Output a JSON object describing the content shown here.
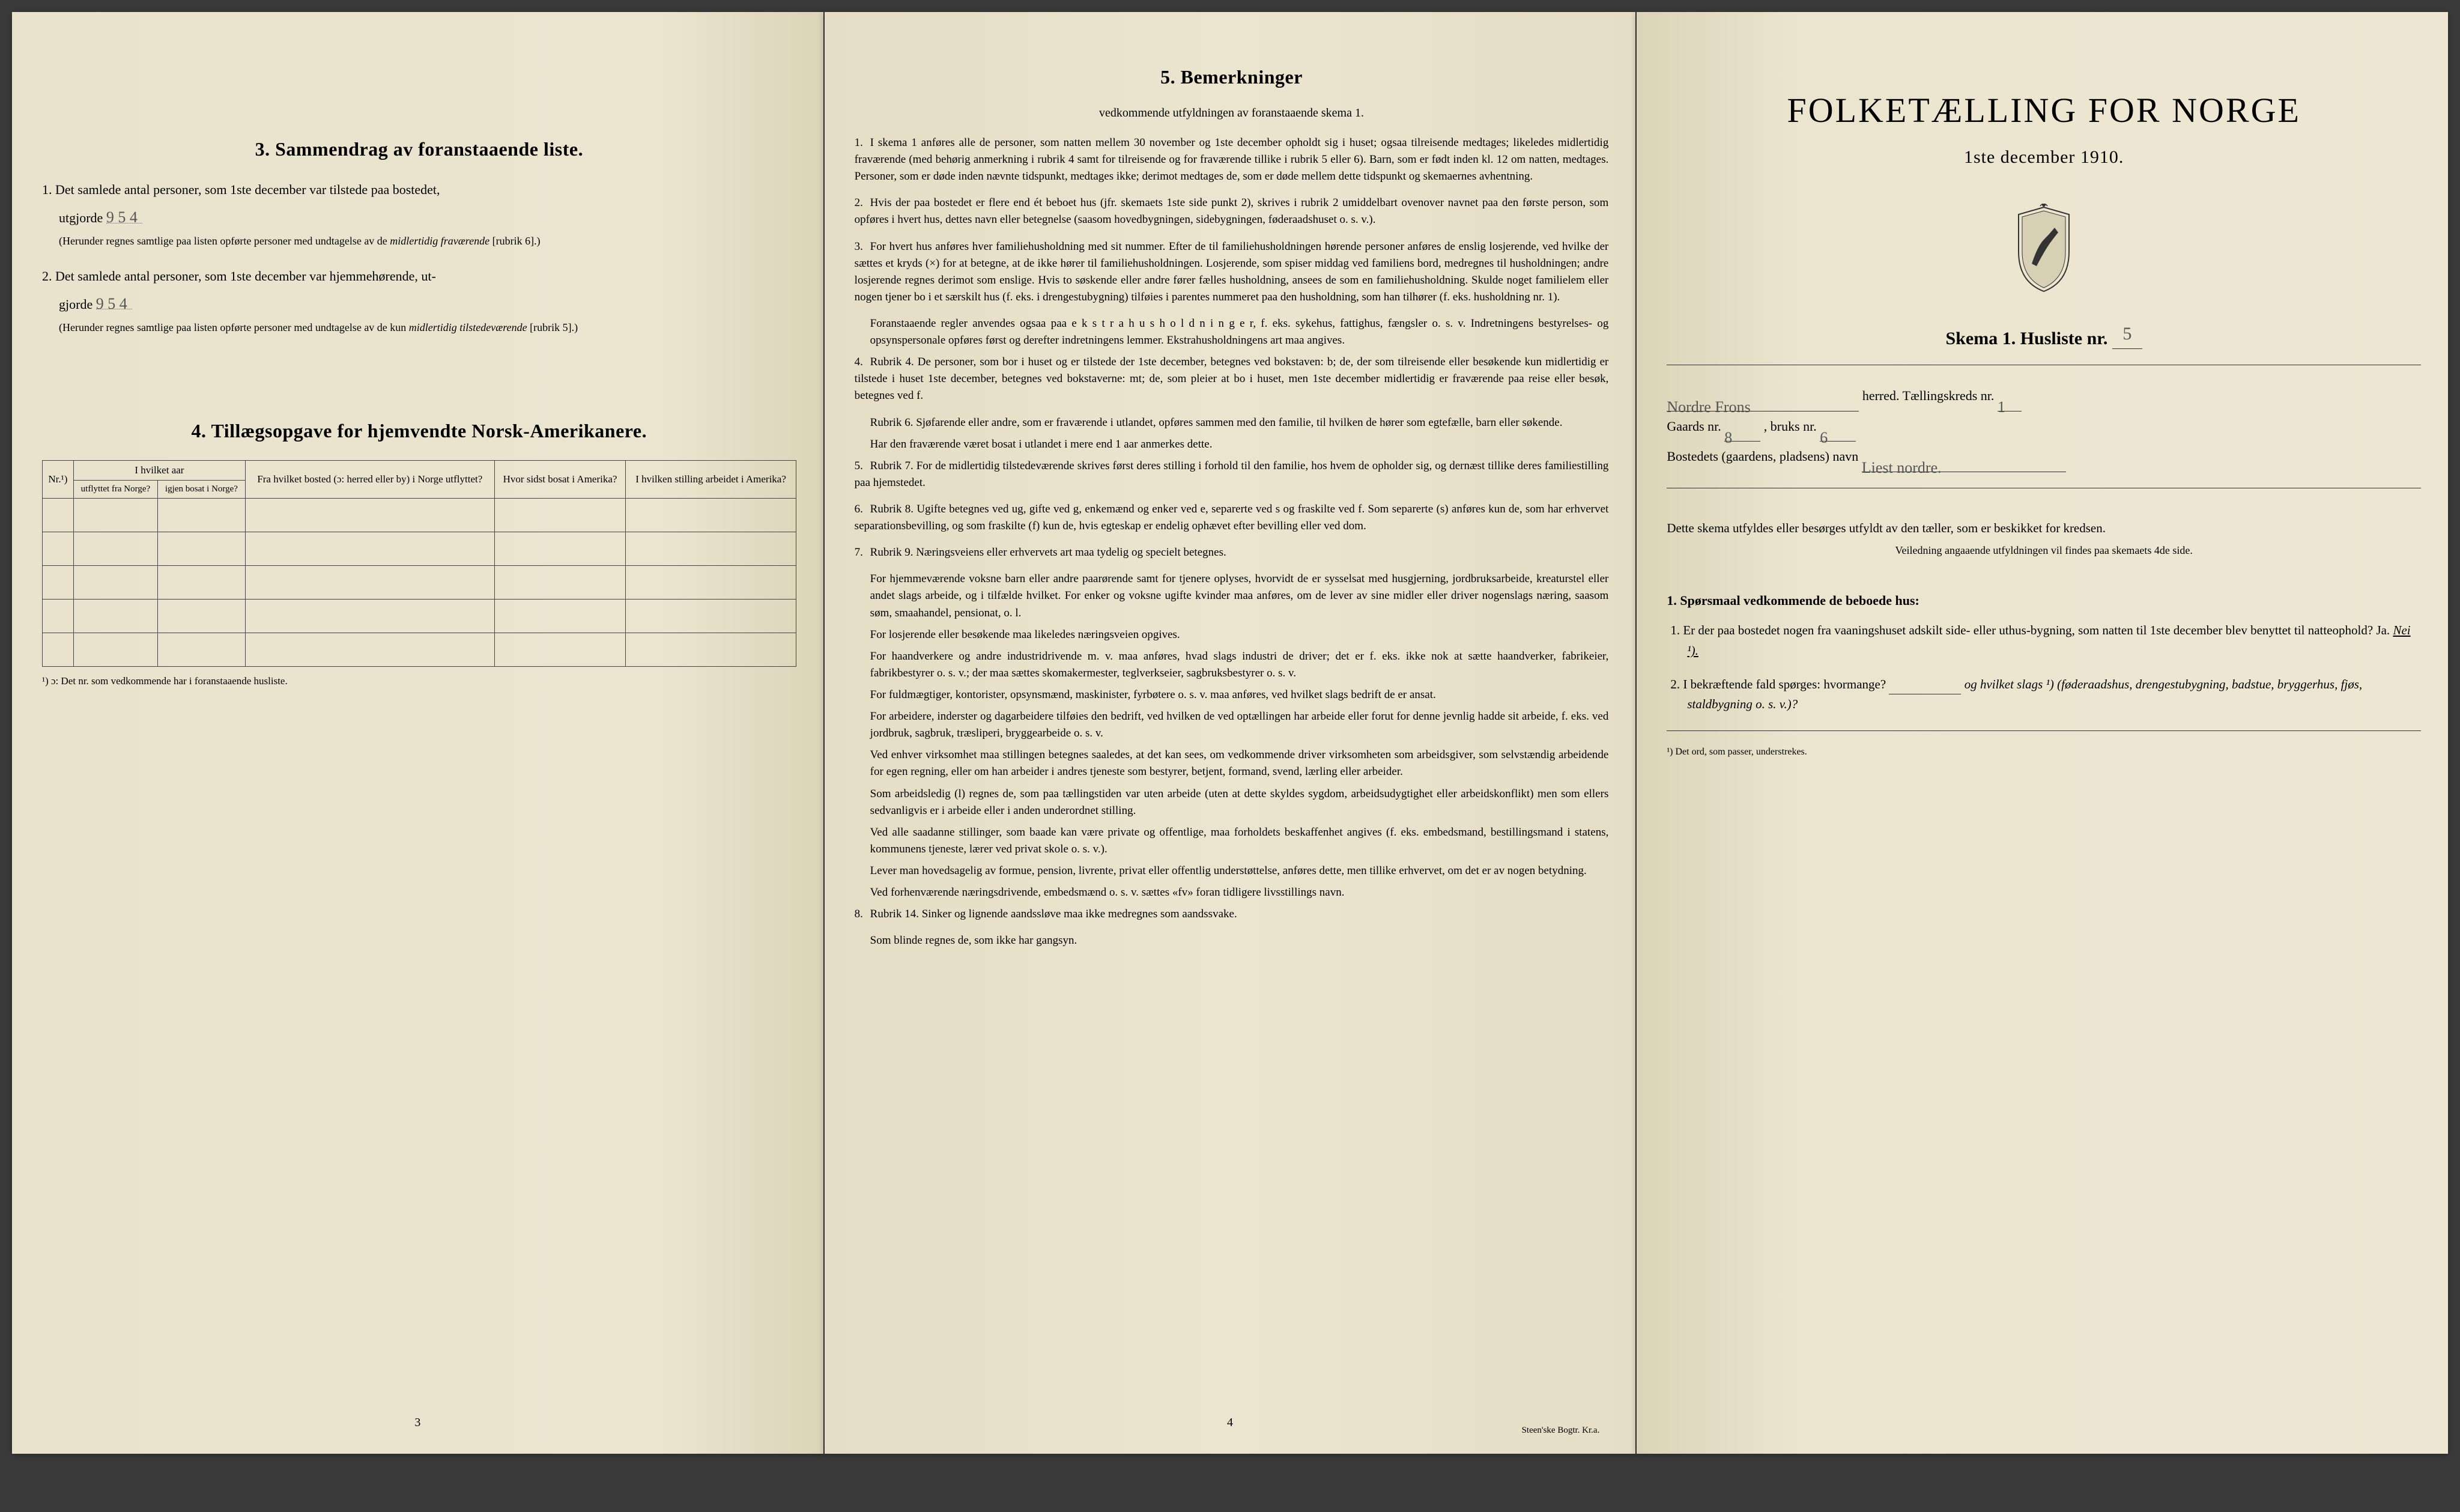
{
  "colors": {
    "paper": "#ebe5d0",
    "ink": "#2a2a25",
    "hand": "#666055"
  },
  "page1": {
    "section3_title": "3.   Sammendrag av foranstaaende liste.",
    "line1a": "1.  Det samlede antal personer, som 1ste december var tilstede paa bostedet,",
    "line1b": "utgjorde",
    "hand1": "9        5    4",
    "line1c": "(Herunder regnes samtlige paa listen opførte personer med undtagelse av de",
    "line1c_it": "midlertidig fraværende",
    "line1d": "[rubrik 6].)",
    "line2a": "2.  Det samlede antal personer, som 1ste december var hjemmehørende, ut-",
    "line2b": "gjorde",
    "hand2": "9        5    4",
    "line2c": "(Herunder regnes samtlige paa listen opførte personer med undtagelse av de kun",
    "line2c_it": "midlertidig tilstedeværende",
    "line2d": "[rubrik 5].)",
    "section4_title": "4.   Tillægsopgave for hjemvendte Norsk-Amerikanere.",
    "table": {
      "col_nr": "Nr.¹)",
      "col_aar": "I hvilket aar",
      "col_aar_sub1": "utflyttet fra Norge?",
      "col_aar_sub2": "igjen bosat i Norge?",
      "col_hosted": "Fra hvilket bosted (ɔ: herred eller by) i Norge utflyttet?",
      "col_sidst": "Hvor sidst bosat i Amerika?",
      "col_stilling": "I hvilken stilling arbeidet i Amerika?",
      "rows": 5
    },
    "footnote1": "¹) ɔ: Det nr. som vedkommende har i foranstaaende husliste.",
    "pagenum": "3"
  },
  "page2": {
    "title": "5.    Bemerkninger",
    "subtitle": "vedkommende utfyldningen av foranstaaende skema 1.",
    "rules": [
      {
        "n": "1.",
        "text": "I skema 1 anføres alle de personer, som natten mellem 30 november og 1ste december opholdt sig i huset; ogsaa tilreisende medtages; likeledes midlertidig fraværende (med behørig anmerkning i rubrik 4 samt for tilreisende og for fraværende tillike i rubrik 5 eller 6). Barn, som er født inden kl. 12 om natten, medtages. Personer, som er døde inden nævnte tidspunkt, medtages ikke; derimot medtages de, som er døde mellem dette tidspunkt og skemaernes avhentning."
      },
      {
        "n": "2.",
        "text": "Hvis der paa bostedet er flere end ét beboet hus (jfr. skemaets 1ste side punkt 2), skrives i rubrik 2 umiddelbart ovenover navnet paa den første person, som opføres i hvert hus, dettes navn eller betegnelse (saasom hovedbygningen, sidebygningen, føderaadshuset o. s. v.)."
      },
      {
        "n": "3.",
        "text": "For hvert hus anføres hver familiehusholdning med sit nummer. Efter de til familiehusholdningen hørende personer anføres de enslig losjerende, ved hvilke der sættes et kryds (×) for at betegne, at de ikke hører til familiehusholdningen. Losjerende, som spiser middag ved familiens bord, medregnes til husholdningen; andre losjerende regnes derimot som enslige. Hvis to søskende eller andre fører fælles husholdning, ansees de som en familiehusholdning. Skulde noget familielem eller nogen tjener bo i et særskilt hus (f. eks. i drengestubygning) tilføies i parentes nummeret paa den husholdning, som han tilhører (f. eks. husholdning nr. 1).",
        "extra": [
          "Foranstaaende regler anvendes ogsaa paa e k s t r a h u s h o l d n i n g e r, f. eks. sykehus, fattighus, fængsler o. s. v. Indretningens bestyrelses- og opsynspersonale opføres først og derefter indretningens lemmer. Ekstrahusholdningens art maa angives."
        ]
      },
      {
        "n": "4.",
        "text": "Rubrik 4. De personer, som bor i huset og er tilstede der 1ste december, betegnes ved bokstaven: b; de, der som tilreisende eller besøkende kun midlertidig er tilstede i huset 1ste december, betegnes ved bokstaverne: mt; de, som pleier at bo i huset, men 1ste december midlertidig er fraværende paa reise eller besøk, betegnes ved f.",
        "extra": [
          "Rubrik 6. Sjøfarende eller andre, som er fraværende i utlandet, opføres sammen med den familie, til hvilken de hører som egtefælle, barn eller søkende.",
          "Har den fraværende været bosat i utlandet i mere end 1 aar anmerkes dette."
        ]
      },
      {
        "n": "5.",
        "text": "Rubrik 7. For de midlertidig tilstedeværende skrives først deres stilling i forhold til den familie, hos hvem de opholder sig, og dernæst tillike deres familiestilling paa hjemstedet."
      },
      {
        "n": "6.",
        "text": "Rubrik 8. Ugifte betegnes ved ug, gifte ved g, enkemænd og enker ved e, separerte ved s og fraskilte ved f. Som separerte (s) anføres kun de, som har erhvervet separationsbevilling, og som fraskilte (f) kun de, hvis egteskap er endelig ophævet efter bevilling eller ved dom."
      },
      {
        "n": "7.",
        "text": "Rubrik 9. Næringsveiens eller erhvervets art maa tydelig og specielt betegnes.",
        "extra": [
          "For hjemmeværende voksne barn eller andre paarørende samt for tjenere oplyses, hvorvidt de er sysselsat med husgjerning, jordbruksarbeide, kreaturstel eller andet slags arbeide, og i tilfælde hvilket. For enker og voksne ugifte kvinder maa anføres, om de lever av sine midler eller driver nogenslags næring, saasom søm, smaahandel, pensionat, o. l.",
          "For losjerende eller besøkende maa likeledes næringsveien opgives.",
          "For haandverkere og andre industridrivende m. v. maa anføres, hvad slags industri de driver; det er f. eks. ikke nok at sætte haandverker, fabrikeier, fabrikbestyrer o. s. v.; der maa sættes skomakermester, teglverkseier, sagbruksbestyrer o. s. v.",
          "For fuldmægtiger, kontorister, opsynsmænd, maskinister, fyrbøtere o. s. v. maa anføres, ved hvilket slags bedrift de er ansat.",
          "For arbeidere, inderster og dagarbeidere tilføies den bedrift, ved hvilken de ved optællingen har arbeide eller forut for denne jevnlig hadde sit arbeide, f. eks. ved jordbruk, sagbruk, træsliperi, bryggearbeide o. s. v.",
          "Ved enhver virksomhet maa stillingen betegnes saaledes, at det kan sees, om vedkommende driver virksomheten som arbeidsgiver, som selvstændig arbeidende for egen regning, eller om han arbeider i andres tjeneste som bestyrer, betjent, formand, svend, lærling eller arbeider.",
          "Som arbeidsledig (l) regnes de, som paa tællingstiden var uten arbeide (uten at dette skyldes sygdom, arbeidsudygtighet eller arbeidskonflikt) men som ellers sedvanligvis er i arbeide eller i anden underordnet stilling.",
          "Ved alle saadanne stillinger, som baade kan være private og offentlige, maa forholdets beskaffenhet angives (f. eks. embedsmand, bestillingsmand i statens, kommunens tjeneste, lærer ved privat skole o. s. v.).",
          "Lever man hovedsagelig av formue, pension, livrente, privat eller offentlig understøttelse, anføres dette, men tillike erhvervet, om det er av nogen betydning.",
          "Ved forhenværende næringsdrivende, embedsmænd o. s. v. sættes «fv» foran tidligere livsstillings navn."
        ]
      },
      {
        "n": "8.",
        "text": "Rubrik 14. Sinker og lignende aandssløve maa ikke medregnes som aandssvake.",
        "extra": [
          "Som blinde regnes de, som ikke har gangsyn."
        ]
      }
    ],
    "pagenum": "4",
    "printer": "Steen'ske Bogtr.  Kr.a."
  },
  "page3": {
    "title": "FOLKETÆLLING FOR NORGE",
    "date": "1ste december 1910.",
    "skema_label": "Skema 1.   Husliste nr.",
    "skema_hand": "5",
    "herred_hand": "Nordre  Frons",
    "herred_suffix": "herred.   Tællingskreds nr.",
    "tkreds_hand": "1",
    "gaard_label": "Gaards nr.",
    "gaard_hand": "8",
    "bruk_label": ", bruks nr.",
    "bruk_hand": "6",
    "bosted_label": "Bostedets (gaardens, pladsens) navn",
    "bosted_hand": "Liest   nordre.",
    "descr": "Dette skema utfyldes eller besørges utfyldt av den tæller, som er beskikket for kredsen.",
    "descr_sub": "Veiledning angaaende utfyldningen vil findes paa skemaets 4de side.",
    "q_heading": "1.  Spørsmaal vedkommende de beboede hus:",
    "q1": "1.  Er der paa bostedet nogen fra vaaningshuset adskilt side- eller uthus-bygning, som natten til 1ste december blev benyttet til natteophold?    Ja.",
    "q1_nei": "Nei ¹).",
    "q2": "2.  I bekræftende fald spørges: hvormange?",
    "q2_tail": "og hvilket slags ¹) (føderaadshus, drengestubygning, badstue, bryggerhus, fjøs, staldbygning o. s. v.)?",
    "foot": "¹) Det ord, som passer, understrekes."
  }
}
